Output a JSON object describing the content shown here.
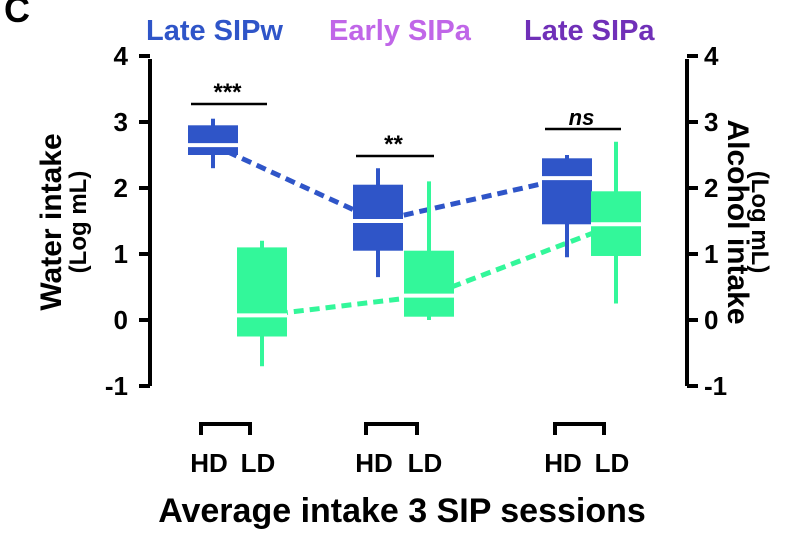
{
  "panel_letter": "C",
  "colors": {
    "late_sipw": "#2f55c8",
    "early_sipa": "#c066e8",
    "late_sipa": "#7030b8",
    "hd_box": "#2f55c8",
    "ld_box": "#33f79a",
    "median": "#ffffff",
    "axis": "#000000"
  },
  "chart_data": {
    "type": "box",
    "legend": [
      "Late SIPw",
      "Early SIPa",
      "Late SIPa"
    ],
    "xlabel": "Average intake 3 SIP sessions",
    "ylabel_left": "Water intake",
    "ylabel_left_unit": "(Log mL)",
    "ylabel_right": "Alcohol intake",
    "ylabel_right_unit": "(Log mL)",
    "ylim": [
      -1,
      4
    ],
    "yticks": [
      "-1",
      "0",
      "1",
      "2",
      "3",
      "4"
    ],
    "groups": [
      {
        "label": "Late SIPw",
        "significance": "***",
        "boxes": [
          {
            "name": "HD",
            "whisker_low": 2.3,
            "q1": 2.5,
            "median": 2.65,
            "q3": 2.95,
            "whisker_high": 3.05
          },
          {
            "name": "LD",
            "whisker_low": -0.7,
            "q1": -0.25,
            "median": 0.07,
            "q3": 1.1,
            "whisker_high": 1.2
          }
        ]
      },
      {
        "label": "Early SIPa",
        "significance": "**",
        "boxes": [
          {
            "name": "HD",
            "whisker_low": 0.65,
            "q1": 1.05,
            "median": 1.5,
            "q3": 2.05,
            "whisker_high": 2.3
          },
          {
            "name": "LD",
            "whisker_low": 0.0,
            "q1": 0.05,
            "median": 0.37,
            "q3": 1.05,
            "whisker_high": 2.1
          }
        ]
      },
      {
        "label": "Late SIPa",
        "significance": "ns",
        "boxes": [
          {
            "name": "HD",
            "whisker_low": 0.95,
            "q1": 1.45,
            "median": 2.15,
            "q3": 2.45,
            "whisker_high": 2.5
          },
          {
            "name": "LD",
            "whisker_low": 0.25,
            "q1": 0.97,
            "median": 1.45,
            "q3": 1.95,
            "whisker_high": 2.7
          }
        ]
      }
    ],
    "trend_series": [
      {
        "color": "hd",
        "medians": [
          2.65,
          1.5,
          2.15
        ]
      },
      {
        "color": "ld",
        "medians": [
          0.07,
          0.37,
          1.45
        ]
      }
    ]
  }
}
